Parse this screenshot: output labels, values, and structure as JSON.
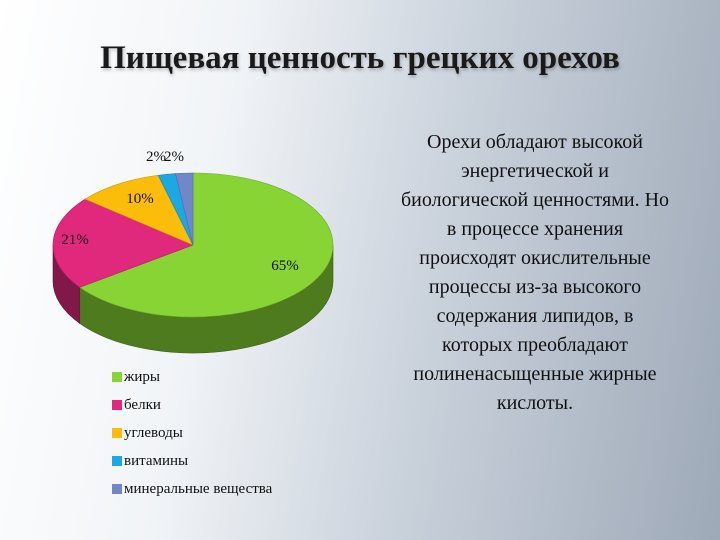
{
  "chart_data": {
    "type": "pie",
    "title": "Пищевая ценность грецких орехов",
    "categories": [
      "жиры",
      "белки",
      "углеводы",
      "витамины",
      "минеральные вещества"
    ],
    "values": [
      65,
      21,
      10,
      2,
      2
    ],
    "labels": [
      "65%",
      "21%",
      "10%",
      "2%",
      "2%"
    ],
    "colors": [
      "#88d435",
      "#e0287d",
      "#fbbd0a",
      "#1ca8e3",
      "#7287c9"
    ],
    "legend": "bottom",
    "three_d": true
  },
  "description": "Орехи обладают высокой энергетической и биологической ценностями. Но в процессе хранения происходят окислительные процессы из-за высокого содержания липидов, в которых преобладают полиненасыщенные жирные кислоты."
}
